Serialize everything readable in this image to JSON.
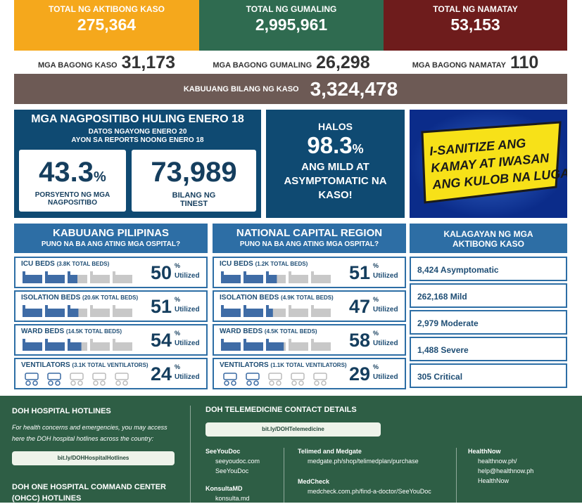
{
  "summary": [
    {
      "label": "TOTAL NG AKTIBONG KASO",
      "value": "275,364"
    },
    {
      "label": "TOTAL NG GUMALING",
      "value": "2,995,961"
    },
    {
      "label": "TOTAL NG NAMATAY",
      "value": "53,153"
    }
  ],
  "new": [
    {
      "label": "MGA BAGONG KASO",
      "value": "31,173"
    },
    {
      "label": "MGA BAGONG GUMALING",
      "value": "26,298"
    },
    {
      "label": "MGA BAGONG NAMATAY",
      "value": "110"
    }
  ],
  "total": {
    "label": "KABUUANG BILANG NG KASO",
    "value": "3,324,478"
  },
  "positivity": {
    "title": "MGA NAGPOSITIBO HULING ENERO 18",
    "subtitle1": "DATOS NGAYONG ENERO 20",
    "subtitle2": "AYON SA REPORTS NOONG ENERO 18",
    "rate": "43.3",
    "rate_unit": "%",
    "rate_label": "PORSYENTO NG MGA NAGPOSITIBO",
    "tests": "73,989",
    "tests_label": "BILANG NG TINEST"
  },
  "mild": {
    "line1": "HALOS",
    "value": "98.3",
    "unit": "%",
    "line2": "ANG MILD AT ASYMPTOMATIC NA KASO!"
  },
  "banner": {
    "lines": [
      "I-SANITIZE ANG",
      "KAMAY AT IWASAN",
      "ANG KULOB NA LUGAR"
    ]
  },
  "hospitals": [
    {
      "title": "KABUUANG PILIPINAS",
      "subtitle": "PUNO NA BA ANG ATING MGA OSPITAL?",
      "rows": [
        {
          "label": "ICU BEDS",
          "note": "(3.8K TOTAL BEDS)",
          "value": "50",
          "unit": "%",
          "status": "Utilized"
        },
        {
          "label": "ISOLATION BEDS",
          "note": "(20.6K TOTAL BEDS)",
          "value": "51",
          "unit": "%",
          "status": "Utilized"
        },
        {
          "label": "WARD BEDS",
          "note": "(14.5K TOTAL BEDS)",
          "value": "54",
          "unit": "%",
          "status": "Utilized"
        },
        {
          "label": "VENTILATORS",
          "note": "(3.1K TOTAL VENTILATORS)",
          "value": "24",
          "unit": "%",
          "status": "Utilized"
        }
      ]
    },
    {
      "title": "NATIONAL CAPITAL REGION",
      "subtitle": "PUNO NA BA ANG ATING MGA OSPITAL?",
      "rows": [
        {
          "label": "ICU BEDS",
          "note": "(1.2K TOTAL BEDS)",
          "value": "51",
          "unit": "%",
          "status": "Utilized"
        },
        {
          "label": "ISOLATION BEDS",
          "note": "(4.9K TOTAL BEDS)",
          "value": "47",
          "unit": "%",
          "status": "Utilized"
        },
        {
          "label": "WARD BEDS",
          "note": "(4.5K TOTAL BEDS)",
          "value": "58",
          "unit": "%",
          "status": "Utilized"
        },
        {
          "label": "VENTILATORS",
          "note": "(1.1K TOTAL VENTILATORS)",
          "value": "29",
          "unit": "%",
          "status": "Utilized"
        }
      ]
    }
  ],
  "status": {
    "title": "KALAGAYAN NG MGA AKTIBONG KASO",
    "rows": [
      "8,424 Asymptomatic",
      "262,168 Mild",
      "2,979 Moderate",
      "1,488 Severe",
      "305 Critical"
    ]
  },
  "footer": {
    "hotlines": {
      "title": "DOH HOSPITAL HOTLINES",
      "text": "For health concerns and emergencies, you may access here the DOH hospital hotlines across the country:",
      "link": "bit.ly/DOHHospitalHotlines",
      "ohcc": "DOH ONE HOSPITAL COMMAND CENTER (OHCC) HOTLINES"
    },
    "telemedicine": {
      "title": "DOH TELEMEDICINE CONTACT DETAILS",
      "link": "bit.ly/DOHTelemedicine",
      "providers": [
        {
          "name": "SeeYouDoc",
          "items": [
            "seeyoudoc.com",
            "SeeYouDoc"
          ]
        },
        {
          "name": "KonsultaMD",
          "items": [
            "konsulta.md"
          ]
        },
        {
          "name": "Telimed and Medgate",
          "items": [
            "medgate.ph/shop/telimedplan/purchase"
          ]
        },
        {
          "name": "MedCheck",
          "items": [
            "medcheck.com.ph/find-a-doctor/SeeYouDoc"
          ]
        },
        {
          "name": "HealthNow",
          "items": [
            "healthnow.ph/",
            "help@healthnow.ph",
            "HealthNow"
          ]
        }
      ]
    }
  }
}
